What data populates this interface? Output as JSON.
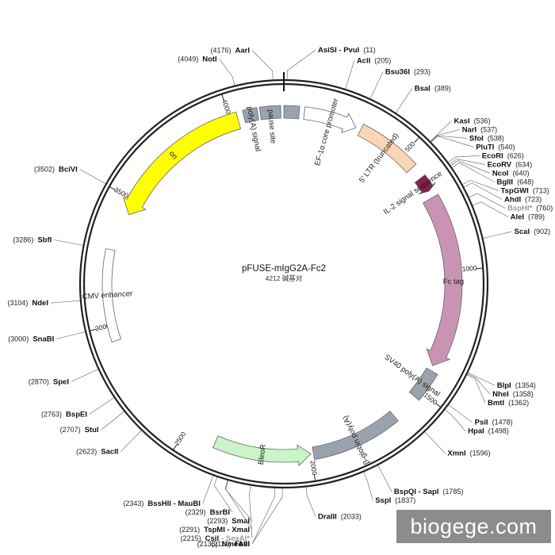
{
  "map": {
    "name": "pFUSE-mIgG2A-Fc2",
    "length_label": "4212 碱基对",
    "total_bp": 4212
  },
  "watermark": "biogege.com",
  "ruler_ticks": [
    "500",
    "1000",
    "1500",
    "2000",
    "2500",
    "3000",
    "3500",
    "4000"
  ],
  "features": [
    {
      "label": "pause site",
      "start": 4120,
      "end": 4200,
      "color": "#9aa3ad",
      "dir": "none"
    },
    {
      "label": "pause site",
      "start": 4212,
      "end": 60,
      "color": "#9aa3ad",
      "dir": "none"
    },
    {
      "label": "EF-1α core promoter",
      "start": 80,
      "end": 290,
      "color": "#ffffff",
      "dir": "cw"
    },
    {
      "label": "5' LTR (truncated)",
      "start": 310,
      "end": 560,
      "color": "#fbd6b4",
      "dir": "none"
    },
    {
      "label": "IL-2 signal sequence",
      "start": 612,
      "end": 672,
      "color": "#8c1d4f",
      "dir": "cw"
    },
    {
      "label": "Fc tag",
      "start": 700,
      "end": 1390,
      "color": "#c994b4",
      "dir": "cw"
    },
    {
      "label": "SV40 poly(A) signal",
      "start": 1410,
      "end": 1530,
      "color": "#9aa3ad",
      "dir": "none"
    },
    {
      "label": "β-globin poly(A)",
      "start": 1640,
      "end": 1990,
      "color": "#9aa3ad",
      "dir": "none"
    },
    {
      "label": "BleoR",
      "start": 2000,
      "end": 2380,
      "color": "#c9f5c9",
      "dir": "ccw"
    },
    {
      "label": "CMV enhancer",
      "start": 2940,
      "end": 3290,
      "color": "#ffffff",
      "dir": "none"
    },
    {
      "label": "ori",
      "start": 3440,
      "end": 4030,
      "color": "#ffff00",
      "dir": "ccw"
    },
    {
      "label": "poly(A) signal",
      "start": 4055,
      "end": 4110,
      "color": "#9aa3ad",
      "dir": "none"
    }
  ],
  "sites": [
    {
      "name": "AsiSI - PvuI",
      "pos": "(11)",
      "pos_num": 11
    },
    {
      "name": "AclI",
      "pos": "(205)",
      "pos_num": 205
    },
    {
      "name": "Bsu36I",
      "pos": "(293)",
      "pos_num": 293
    },
    {
      "name": "BsaI",
      "pos": "(389)",
      "pos_num": 389
    },
    {
      "name": "KasI",
      "pos": "(536)",
      "pos_num": 536
    },
    {
      "name": "NarI",
      "pos": "(537)",
      "pos_num": 537
    },
    {
      "name": "SfoI",
      "pos": "(538)",
      "pos_num": 538
    },
    {
      "name": "PluTI",
      "pos": "(540)",
      "pos_num": 540
    },
    {
      "name": "EcoRI",
      "pos": "(626)",
      "pos_num": 626
    },
    {
      "name": "EcoRV",
      "pos": "(634)",
      "pos_num": 634
    },
    {
      "name": "NcoI",
      "pos": "(640)",
      "pos_num": 640
    },
    {
      "name": "BglII",
      "pos": "(648)",
      "pos_num": 648
    },
    {
      "name": "TspGWI",
      "pos": "(713)",
      "pos_num": 713
    },
    {
      "name": "AhdI",
      "pos": "(723)",
      "pos_num": 723
    },
    {
      "name": "BspHI*",
      "pos": "(760)",
      "pos_num": 760,
      "gray": true
    },
    {
      "name": "AleI",
      "pos": "(789)",
      "pos_num": 789
    },
    {
      "name": "ScaI",
      "pos": "(902)",
      "pos_num": 902
    },
    {
      "name": "BlpI",
      "pos": "(1354)",
      "pos_num": 1354
    },
    {
      "name": "NheI",
      "pos": "(1358)",
      "pos_num": 1358
    },
    {
      "name": "BmtI",
      "pos": "(1362)",
      "pos_num": 1362
    },
    {
      "name": "PsiI",
      "pos": "(1478)",
      "pos_num": 1478
    },
    {
      "name": "HpaI",
      "pos": "(1498)",
      "pos_num": 1498
    },
    {
      "name": "XmnI",
      "pos": "(1596)",
      "pos_num": 1596
    },
    {
      "name": "BspQI - SapI",
      "pos": "(1785)",
      "pos_num": 1785
    },
    {
      "name": "SspI",
      "pos": "(1837)",
      "pos_num": 1837
    },
    {
      "name": "DraIII",
      "pos": "(2033)",
      "pos_num": 2033
    },
    {
      "name": "FseI",
      "pos": "(2111)",
      "pos_num": 2111
    },
    {
      "name": "NmeAIII",
      "pos": "(2135)",
      "pos_num": 2135
    },
    {
      "name": "CsiI",
      "pos": "(2215)",
      "pos_num": 2215,
      "extra": "SexAI*"
    },
    {
      "name": "TspMI - XmaI",
      "pos": "(2291)",
      "pos_num": 2291
    },
    {
      "name": "SmaI",
      "pos": "(2293)",
      "pos_num": 2293
    },
    {
      "name": "BsrBI",
      "pos": "(2329)",
      "pos_num": 2329
    },
    {
      "name": "BssHII - MauBI",
      "pos": "(2343)",
      "pos_num": 2343
    },
    {
      "name": "SacII",
      "pos": "(2623)",
      "pos_num": 2623
    },
    {
      "name": "StuI",
      "pos": "(2707)",
      "pos_num": 2707
    },
    {
      "name": "BspEI",
      "pos": "(2763)",
      "pos_num": 2763
    },
    {
      "name": "SpeI",
      "pos": "(2870)",
      "pos_num": 2870
    },
    {
      "name": "SnaBI",
      "pos": "(3000)",
      "pos_num": 3000
    },
    {
      "name": "NdeI",
      "pos": "(3104)",
      "pos_num": 3104
    },
    {
      "name": "SbfI",
      "pos": "(3286)",
      "pos_num": 3286
    },
    {
      "name": "BciVI",
      "pos": "(3502)",
      "pos_num": 3502
    },
    {
      "name": "NotI",
      "pos": "(4049)",
      "pos_num": 4049
    },
    {
      "name": "AarI",
      "pos": "(4176)",
      "pos_num": 4176
    }
  ]
}
